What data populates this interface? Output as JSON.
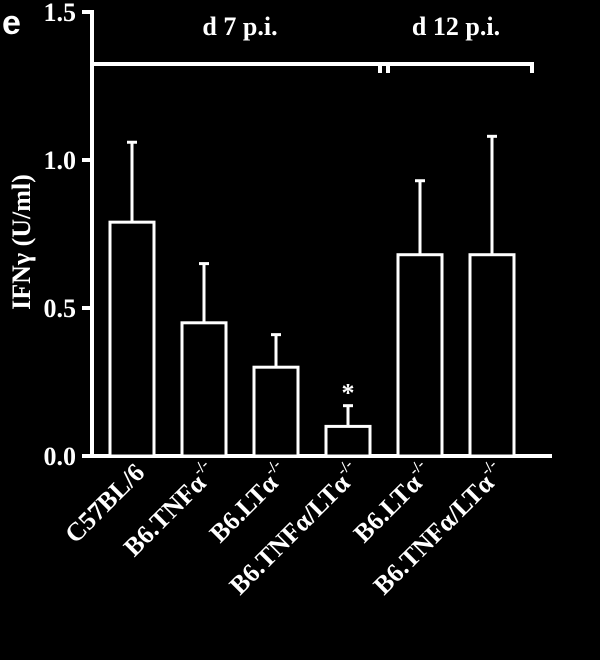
{
  "chart_data": {
    "type": "bar",
    "panel_label": "e",
    "ylabel": "IFNγ (U/ml)",
    "xlabel": "",
    "ylim": [
      0,
      1.5
    ],
    "yticks": [
      "0.0",
      "0.5",
      "1.0",
      "1.5"
    ],
    "ytick_values": [
      0,
      0.5,
      1.0,
      1.5
    ],
    "grid": false,
    "categories": [
      {
        "base": "C57BL/6",
        "sup": ""
      },
      {
        "base": "B6.TNFα",
        "sup": "-/-"
      },
      {
        "base": "B6.LTα",
        "sup": "-/-"
      },
      {
        "base": "B6.TNFα/LTα",
        "sup": "-/-"
      },
      {
        "base": "B6.LTα",
        "sup": "-/-"
      },
      {
        "base": "B6.TNFα/LTα",
        "sup": "-/-"
      }
    ],
    "values": [
      0.79,
      0.45,
      0.3,
      0.1,
      0.68,
      0.68
    ],
    "errors": [
      0.27,
      0.2,
      0.11,
      0.07,
      0.25,
      0.4
    ],
    "annotations": [
      {
        "category_index": 3,
        "text": "*"
      }
    ],
    "groups": [
      {
        "label": "d 7 p.i.",
        "start_index": 0,
        "end_index": 3
      },
      {
        "label": "d 12 p.i.",
        "start_index": 4,
        "end_index": 5
      }
    ]
  }
}
